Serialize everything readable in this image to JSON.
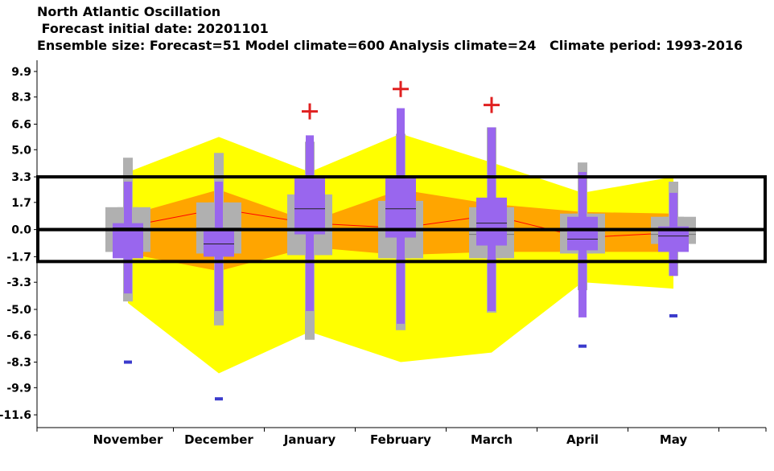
{
  "titles": {
    "line1": "North Atlantic Oscillation",
    "line2": " Forecast initial date: 20201101",
    "line3": "Ensemble size: Forecast=51 Model climate=600 Analysis climate=24   Climate period: 1993-2016"
  },
  "colors": {
    "climate_outer": "#ffff00",
    "climate_inner": "#ffa500",
    "climate_median_line": "#ff0000",
    "model_box": "#b0b0b0",
    "forecast_box": "#9966ee",
    "analysis_extreme_high": "#e02020",
    "analysis_extreme_low": "#3a3acc",
    "highlight_frame": "#000000"
  },
  "chart_data": {
    "type": "box",
    "categories": [
      "November",
      "December",
      "January",
      "February",
      "March",
      "April",
      "May"
    ],
    "yticks": [
      "9.9",
      "8.3",
      "6.6",
      "5.0",
      "3.3",
      "1.7",
      "0.0",
      "-1.7",
      "-3.3",
      "-5.0",
      "-6.6",
      "-8.3",
      "-9.9",
      "-11.6"
    ],
    "ylim": [
      -12.4,
      10.6
    ],
    "climate_outer": {
      "upper": [
        3.6,
        5.8,
        3.6,
        6.0,
        4.2,
        2.3,
        3.3
      ],
      "lower": [
        -4.6,
        -9.0,
        -6.4,
        -8.3,
        -7.7,
        -3.3,
        -3.7
      ]
    },
    "climate_inner": {
      "upper": [
        0.9,
        2.5,
        0.5,
        2.5,
        1.6,
        1.1,
        1.0
      ],
      "lower": [
        -1.5,
        -2.6,
        -1.1,
        -1.6,
        -1.4,
        -1.4,
        -1.4
      ]
    },
    "climate_median": [
      0.2,
      1.3,
      0.4,
      0.1,
      0.9,
      -0.5,
      -0.2
    ],
    "model": {
      "max": [
        4.5,
        4.8,
        5.5,
        6.0,
        6.4,
        4.2,
        3.0
      ],
      "p90": [
        1.4,
        1.7,
        2.2,
        1.8,
        1.4,
        1.0,
        0.8
      ],
      "p75": [
        0.0,
        0.1,
        0.0,
        0.0,
        -0.3,
        -0.1,
        -0.3
      ],
      "p25": [
        -0.5,
        -1.1,
        -0.6,
        -0.9,
        -0.8,
        -0.9,
        -0.8
      ],
      "p10": [
        -1.4,
        -1.5,
        -1.6,
        -1.8,
        -1.8,
        -1.5,
        -0.9
      ],
      "min": [
        -4.5,
        -6.0,
        -6.9,
        -6.3,
        -5.2,
        -3.8,
        -2.9
      ]
    },
    "forecast": {
      "max": [
        3.0,
        3.0,
        5.9,
        7.6,
        6.4,
        3.6,
        2.3
      ],
      "p75": [
        0.4,
        0.1,
        3.2,
        3.2,
        2.0,
        0.8,
        0.2
      ],
      "median": [
        0.1,
        -0.9,
        1.3,
        1.3,
        0.4,
        -0.6,
        -0.4
      ],
      "p25": [
        -1.8,
        -1.7,
        -0.3,
        -0.5,
        -1.0,
        -1.3,
        -1.4
      ],
      "min": [
        -4.0,
        -5.1,
        -5.1,
        -5.9,
        -5.1,
        -5.5,
        -2.9
      ]
    },
    "analysis_max": [
      null,
      null,
      7.4,
      8.8,
      7.8,
      null,
      null
    ],
    "analysis_min": [
      -8.3,
      -10.6,
      null,
      null,
      null,
      -7.3,
      -5.4
    ]
  },
  "highlight_frames": [
    {
      "y_top": 3.3,
      "y_bottom": 0.0
    },
    {
      "y_top": 0.0,
      "y_bottom": -2.0
    }
  ]
}
